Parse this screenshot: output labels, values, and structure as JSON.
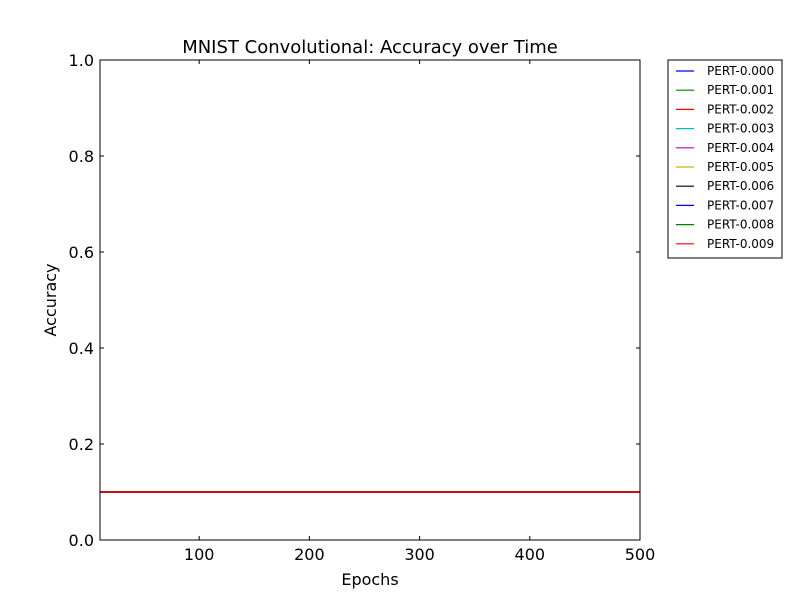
{
  "chart_data": {
    "type": "line",
    "title": "MNIST Convolutional: Accuracy over Time",
    "xlabel": "Epochs",
    "ylabel": "Accuracy",
    "xlim": [
      10,
      500
    ],
    "ylim": [
      0.0,
      1.0
    ],
    "xticks": [
      100,
      200,
      300,
      400,
      500
    ],
    "xtick_labels": [
      "100",
      "200",
      "300",
      "400",
      "500"
    ],
    "yticks": [
      0.0,
      0.2,
      0.4,
      0.6,
      0.8,
      1.0
    ],
    "ytick_labels": [
      "0.0",
      "0.2",
      "0.4",
      "0.6",
      "0.8",
      "1.0"
    ],
    "grid": false,
    "legend_position": "outside-top-right",
    "x": [
      10,
      500
    ],
    "series": [
      {
        "name": "PERT-0.000",
        "color": "#0000ff",
        "values": [
          0.1,
          0.1
        ]
      },
      {
        "name": "PERT-0.001",
        "color": "#008000",
        "values": [
          0.1,
          0.1
        ]
      },
      {
        "name": "PERT-0.002",
        "color": "#ff0000",
        "values": [
          0.1,
          0.1
        ]
      },
      {
        "name": "PERT-0.003",
        "color": "#00bfbf",
        "values": [
          0.1,
          0.1
        ]
      },
      {
        "name": "PERT-0.004",
        "color": "#bf00bf",
        "values": [
          0.1,
          0.1
        ]
      },
      {
        "name": "PERT-0.005",
        "color": "#bfbf00",
        "values": [
          0.1,
          0.1
        ]
      },
      {
        "name": "PERT-0.006",
        "color": "#000000",
        "values": [
          0.1,
          0.1
        ]
      },
      {
        "name": "PERT-0.007",
        "color": "#0000ff",
        "values": [
          0.1,
          0.1
        ]
      },
      {
        "name": "PERT-0.008",
        "color": "#008000",
        "values": [
          0.1,
          0.1
        ]
      },
      {
        "name": "PERT-0.009",
        "color": "#ff0000",
        "values": [
          0.1,
          0.1
        ]
      }
    ]
  }
}
